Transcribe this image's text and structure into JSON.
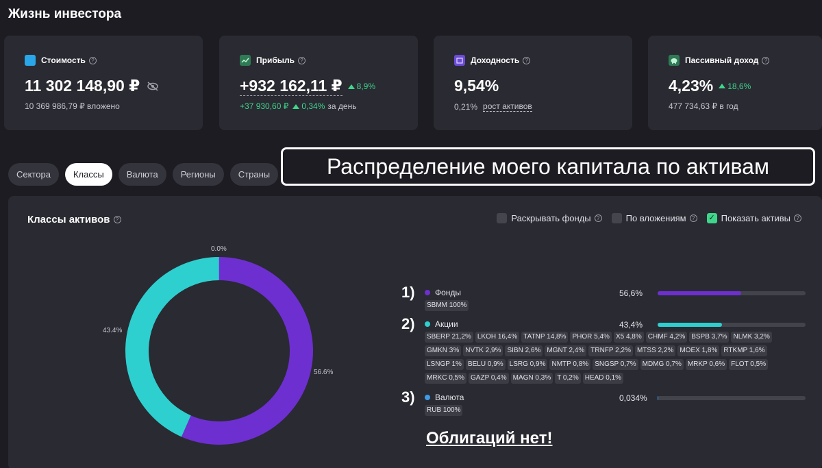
{
  "app": {
    "title": "Жизнь инвестора"
  },
  "cards": [
    {
      "label": "Стоимость",
      "icon": "wallet-icon",
      "icon_color": "#2aa7e8",
      "value": "11 302 148,90 ₽",
      "sub": "10 369 986,79 ₽ вложено"
    },
    {
      "label": "Прибыль",
      "icon": "chart-line-icon",
      "icon_color": "#2f7a55",
      "value": "+932 162,11 ₽",
      "delta": "8,9%",
      "sub_value": "+37 930,60 ₽",
      "sub_delta": "0,34%",
      "sub_text": "за день"
    },
    {
      "label": "Доходность",
      "icon": "calendar-icon",
      "icon_color": "#6b4bd6",
      "value": "9,54%",
      "sub_value": "0,21%",
      "sub_link": "рост активов"
    },
    {
      "label": "Пассивный доход",
      "icon": "piggy-bank-icon",
      "icon_color": "#2f7a55",
      "value": "4,23%",
      "delta": "18,6%",
      "sub": "477 734,63 ₽ в год"
    }
  ],
  "tabs": [
    "Сектора",
    "Классы",
    "Валюта",
    "Регионы",
    "Страны"
  ],
  "active_tab": "Классы",
  "banner": "Распределение моего капитала по активам",
  "panel": {
    "title": "Классы активов",
    "options": [
      {
        "label": "Раскрывать фонды",
        "checked": false
      },
      {
        "label": "По вложениям",
        "checked": false
      },
      {
        "label": "Показать активы",
        "checked": true
      }
    ]
  },
  "chart_data": {
    "type": "pie",
    "categories": [
      "Фонды",
      "Акции",
      "Валюта"
    ],
    "values": [
      56.6,
      43.4,
      0.034
    ],
    "data_labels": [
      "56.6%",
      "43.4%",
      "0.0%"
    ],
    "colors": [
      "#6d2fd0",
      "#2ecfcf",
      "#3d9be8"
    ],
    "style": "donut"
  },
  "classes": [
    {
      "marker": "1)",
      "name": "Фонды",
      "pct": "56,6%",
      "share": 0.566,
      "color": "#6d2fd0",
      "assets": [
        "SBMM 100%"
      ]
    },
    {
      "marker": "2)",
      "name": "Акции",
      "pct": "43,4%",
      "share": 0.434,
      "color": "#2ecfcf",
      "assets": [
        "SBERP 21,2%",
        "LKOH 16,4%",
        "TATNP 14,8%",
        "PHOR 5,4%",
        "X5 4,8%",
        "CHMF 4,2%",
        "BSPB 3,7%",
        "NLMK 3,2%",
        "GMKN 3%",
        "NVTK 2,9%",
        "SIBN 2,6%",
        "MGNT 2,4%",
        "TRNFP 2,2%",
        "MTSS 2,2%",
        "MOEX 1,8%",
        "RTKMP 1,6%",
        "LSNGP 1%",
        "BELU 0,9%",
        "LSRG 0,9%",
        "NMTP 0,8%",
        "SNGSP 0,7%",
        "MDMG 0,7%",
        "MRKP 0,6%",
        "FLOT 0,5%",
        "MRKC 0,5%",
        "GAZP 0,4%",
        "MAGN 0,3%",
        "T 0,2%",
        "HEAD 0,1%"
      ]
    },
    {
      "marker": "3)",
      "name": "Валюта",
      "pct": "0,034%",
      "share": 0.00034,
      "color": "#3d9be8",
      "assets": [
        "RUB 100%"
      ]
    }
  ],
  "note": "Облигаций нет!"
}
